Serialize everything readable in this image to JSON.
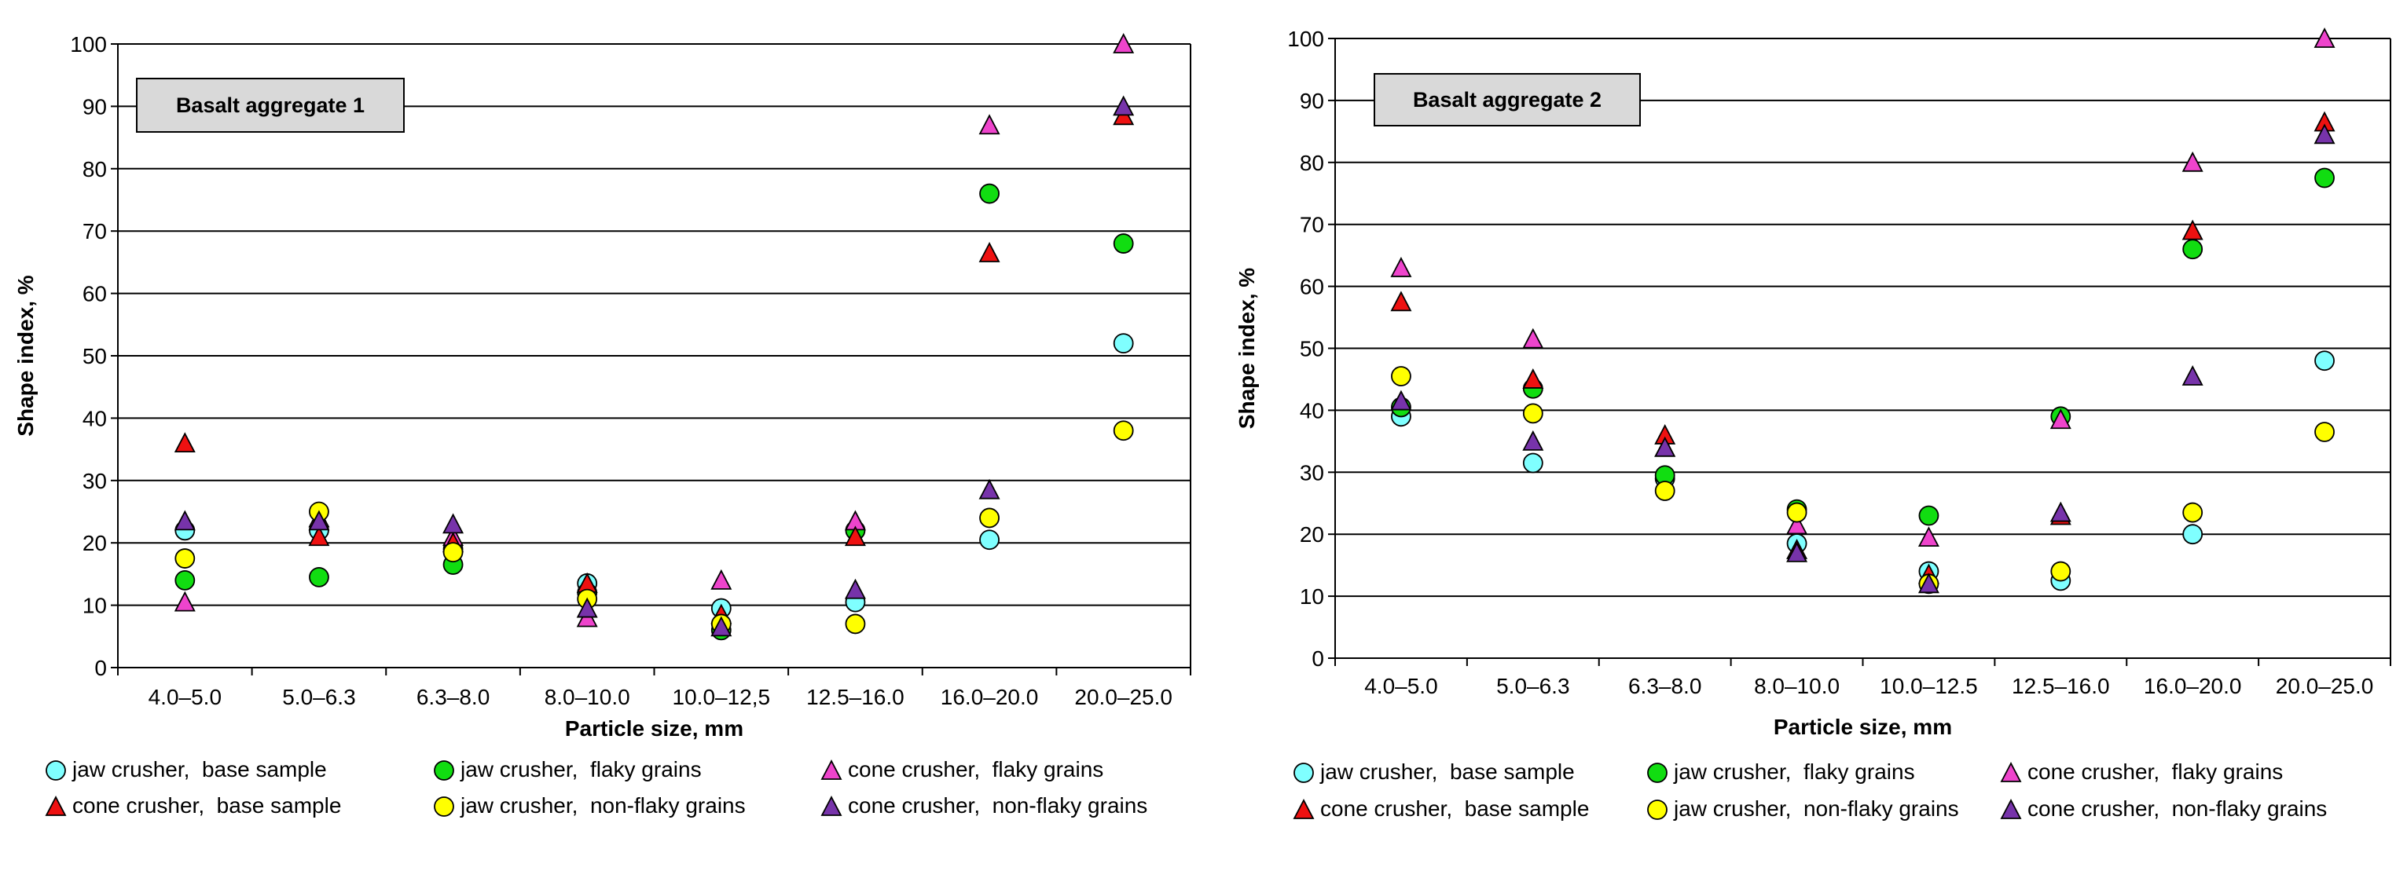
{
  "colors": {
    "jaw_base": "#7fffff",
    "jaw_flaky": "#11dd11",
    "cone_flaky": "#ee44cc",
    "cone_base": "#ee1111",
    "jaw_nonflaky": "#ffff00",
    "cone_nonflaky": "#7733aa",
    "grid": "#000000"
  },
  "chart_data": [
    {
      "type": "scatter",
      "title": "Basalt aggregate 1",
      "xlabel": "Particle size, mm",
      "ylabel": "Shape index, %",
      "ylim": [
        0,
        100
      ],
      "yticks": [
        "0",
        "10",
        "20",
        "30",
        "40",
        "50",
        "60",
        "70",
        "80",
        "90",
        "100"
      ],
      "categories": [
        "4.0–5.0",
        "5.0–6.3",
        "6.3–8.0",
        "8.0–10.0",
        "10.0–12,5",
        "12.5–16.0",
        "16.0–20.0",
        "20.0–25.0"
      ],
      "legend_position": "bottom",
      "series": [
        {
          "name": "jaw crusher,  base sample",
          "marker": "circle",
          "color_key": "jaw_base",
          "values": [
            22,
            22,
            19,
            13.5,
            9.5,
            10.5,
            20.5,
            52
          ]
        },
        {
          "name": "jaw crusher,  flaky grains",
          "marker": "circle",
          "color_key": "jaw_flaky",
          "values": [
            14,
            14.5,
            16.5,
            12,
            6,
            22,
            76,
            68
          ]
        },
        {
          "name": "cone crusher,  flaky grains",
          "marker": "triangle",
          "color_key": "cone_flaky",
          "values": [
            10.5,
            24,
            21,
            8,
            14,
            23.5,
            87,
            100
          ]
        },
        {
          "name": "cone crusher,  base sample",
          "marker": "triangle",
          "color_key": "cone_base",
          "values": [
            36,
            21,
            20,
            13.5,
            8.5,
            21,
            66.5,
            88.5
          ]
        },
        {
          "name": "jaw crusher,  non-flaky grains",
          "marker": "circle",
          "color_key": "jaw_nonflaky",
          "values": [
            17.5,
            25,
            18.5,
            11,
            7,
            7,
            24,
            38
          ]
        },
        {
          "name": "cone crusher,  non-flaky grains",
          "marker": "triangle",
          "color_key": "cone_nonflaky",
          "values": [
            23.5,
            23.5,
            23,
            9.5,
            6.5,
            12.5,
            28.5,
            90
          ]
        }
      ]
    },
    {
      "type": "scatter",
      "title": "Basalt aggregate 2",
      "xlabel": "Particle size, mm",
      "ylabel": "Shape index, %",
      "ylim": [
        0,
        100
      ],
      "yticks": [
        "0",
        "10",
        "20",
        "30",
        "40",
        "50",
        "60",
        "70",
        "80",
        "90",
        "100"
      ],
      "categories": [
        "4.0–5.0",
        "5.0–6.3",
        "6.3–8.0",
        "8.0–10.0",
        "10.0–12.5",
        "12.5–16.0",
        "16.0–20.0",
        "20.0–25.0"
      ],
      "legend_position": "bottom",
      "series": [
        {
          "name": "jaw crusher,  base sample",
          "marker": "circle",
          "color_key": "jaw_base",
          "values": [
            39,
            31.5,
            29,
            18.5,
            14,
            12.5,
            20,
            48
          ]
        },
        {
          "name": "jaw crusher,  flaky grains",
          "marker": "circle",
          "color_key": "jaw_flaky",
          "values": [
            40.5,
            43.5,
            29.5,
            24,
            23,
            39,
            66,
            77.5
          ]
        },
        {
          "name": "cone crusher,  flaky grains",
          "marker": "triangle",
          "color_key": "cone_flaky",
          "values": [
            63,
            51.5,
            34,
            21.5,
            19.5,
            38.5,
            80,
            100
          ]
        },
        {
          "name": "cone crusher,  base sample",
          "marker": "triangle",
          "color_key": "cone_base",
          "values": [
            57.5,
            45,
            36,
            17.5,
            13.5,
            23,
            69,
            86.5
          ]
        },
        {
          "name": "jaw crusher,  non-flaky grains",
          "marker": "circle",
          "color_key": "jaw_nonflaky",
          "values": [
            45.5,
            39.5,
            27,
            23.5,
            12,
            14,
            23.5,
            36.5
          ]
        },
        {
          "name": "cone crusher,  non-flaky grains",
          "marker": "triangle",
          "color_key": "cone_nonflaky",
          "values": [
            41.5,
            35,
            34,
            17,
            12,
            23.5,
            45.5,
            84.5
          ]
        }
      ]
    }
  ]
}
